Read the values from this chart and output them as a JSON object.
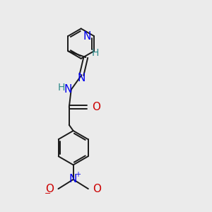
{
  "bg_color": "#ebebeb",
  "bond_color": "#1a1a1a",
  "N_color": "#0000ee",
  "O_color": "#cc0000",
  "H_color": "#2e8b8b",
  "bond_width": 1.4,
  "font_size": 10,
  "fig_size": [
    3.0,
    3.0
  ],
  "dpi": 100,
  "xlim": [
    0,
    10
  ],
  "ylim": [
    0,
    10
  ]
}
